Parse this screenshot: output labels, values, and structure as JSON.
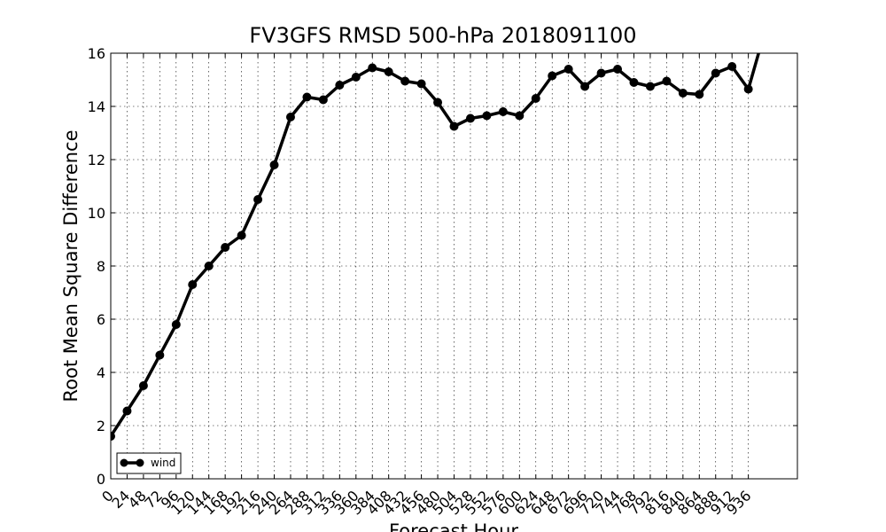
{
  "chart_data": {
    "type": "line",
    "title": "FV3GFS RMSD 500-hPa 2018091100",
    "xlabel": "Forecast Hour",
    "ylabel": "Root Mean Square Difference",
    "ylim": [
      0,
      16
    ],
    "yticks": [
      0,
      2,
      4,
      6,
      8,
      10,
      12,
      14,
      16
    ],
    "xlim": [
      0,
      1008
    ],
    "xticks": [
      0,
      24,
      48,
      72,
      96,
      120,
      144,
      168,
      192,
      216,
      240,
      264,
      288,
      312,
      336,
      360,
      384,
      408,
      432,
      456,
      480,
      504,
      528,
      552,
      576,
      600,
      624,
      648,
      672,
      696,
      720,
      744,
      768,
      792,
      816,
      840,
      864,
      888,
      912,
      936
    ],
    "grid": true,
    "legend": {
      "position": "lower-left",
      "entries": [
        "wind"
      ]
    },
    "series": [
      {
        "name": "wind",
        "color": "#000000",
        "x": [
          0,
          24,
          48,
          72,
          96,
          120,
          144,
          168,
          192,
          216,
          240,
          264,
          288,
          312,
          336,
          360,
          384,
          408,
          432,
          456,
          480,
          504,
          528,
          552,
          576,
          600,
          624,
          648,
          672,
          696,
          720,
          744,
          768,
          792,
          816,
          840,
          864,
          888,
          912,
          936,
          960
        ],
        "values": [
          1.6,
          2.55,
          3.5,
          4.65,
          5.8,
          7.3,
          8.0,
          8.7,
          9.15,
          10.5,
          11.8,
          13.6,
          14.35,
          14.25,
          14.8,
          15.1,
          15.45,
          15.3,
          14.95,
          14.85,
          14.15,
          13.25,
          13.55,
          13.65,
          13.8,
          13.65,
          14.3,
          15.15,
          15.4,
          14.75,
          15.25,
          15.4,
          14.9,
          14.75,
          14.95,
          14.5,
          14.45,
          15.25,
          15.5,
          14.65,
          16.8
        ]
      }
    ]
  }
}
